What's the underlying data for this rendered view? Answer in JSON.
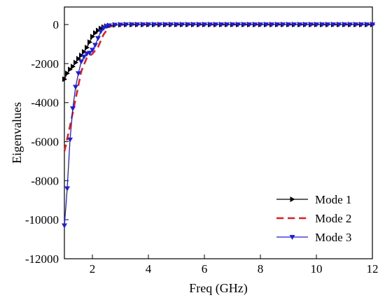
{
  "chart_data": {
    "type": "line",
    "xlabel": "Freq (GHz)",
    "ylabel": "Eigenvalues",
    "xlim": [
      1,
      12
    ],
    "ylim": [
      -12000,
      900
    ],
    "xticks": [
      2,
      4,
      6,
      8,
      10,
      12
    ],
    "xtick_labels": [
      "2",
      "4",
      "6",
      "8",
      "10",
      "12"
    ],
    "yticks": [
      0,
      -2000,
      -4000,
      -6000,
      -8000,
      -10000,
      -12000
    ],
    "ytick_labels": [
      "0",
      "-2000",
      "-4000",
      "-6000",
      "-8000",
      "-10000",
      "-12000"
    ],
    "grid": false,
    "legend_position": "bottom-right",
    "series": [
      {
        "name": "Mode 1",
        "color": "#000000",
        "line_style": "solid",
        "marker": "triangle-right",
        "x": [
          1.0,
          1.1,
          1.2,
          1.3,
          1.4,
          1.5,
          1.6,
          1.7,
          1.8,
          1.9,
          2.0,
          2.1,
          2.2,
          2.3,
          2.4,
          2.5,
          2.6,
          2.8,
          3.0
        ],
        "y": [
          -2800,
          -2500,
          -2300,
          -2150,
          -1950,
          -1750,
          -1580,
          -1400,
          -1180,
          -900,
          -620,
          -430,
          -300,
          -200,
          -130,
          -80,
          -50,
          -20,
          -10
        ]
      },
      {
        "name": "Mode 2",
        "color": "#e41a1c",
        "line_style": "dashed",
        "marker": "none",
        "x": [
          1.0,
          1.2,
          1.4,
          1.6,
          1.8,
          2.0,
          2.2,
          2.4,
          2.6,
          2.8,
          3.0
        ],
        "y": [
          -6500,
          -5200,
          -3800,
          -2400,
          -1700,
          -1500,
          -1150,
          -500,
          -120,
          -40,
          -10
        ]
      },
      {
        "name": "Mode 3",
        "color": "#1f1fd6",
        "line_style": "solid",
        "marker": "triangle-down",
        "x": [
          1.0,
          1.1,
          1.2,
          1.3,
          1.4,
          1.5,
          1.6,
          1.7,
          1.8,
          1.9,
          2.0,
          2.1,
          2.2,
          2.3,
          2.4,
          2.5,
          2.6,
          2.8,
          3.0
        ],
        "y": [
          -10300,
          -8400,
          -5900,
          -4300,
          -3200,
          -2500,
          -1900,
          -1650,
          -1500,
          -1450,
          -1300,
          -1050,
          -700,
          -350,
          -180,
          -90,
          -50,
          -20,
          -10
        ]
      }
    ]
  }
}
